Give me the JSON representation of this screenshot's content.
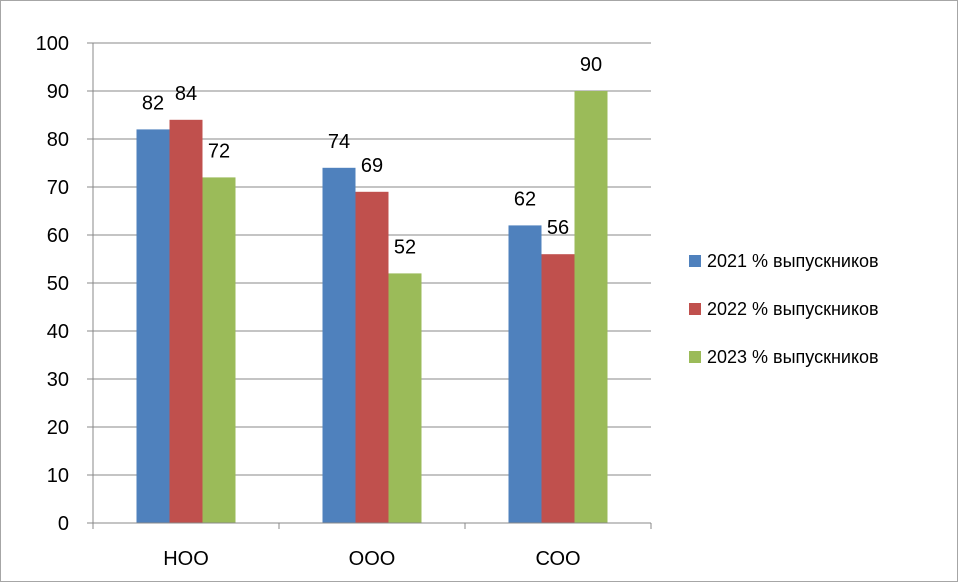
{
  "chart_data": {
    "type": "bar",
    "categories": [
      "НОО",
      "ООО",
      "СОО"
    ],
    "series": [
      {
        "name": "2021 % выпускников",
        "color": "#4f81bd",
        "values": [
          82,
          74,
          62
        ]
      },
      {
        "name": "2022 % выпускников",
        "color": "#c0504d",
        "values": [
          84,
          69,
          56
        ]
      },
      {
        "name": "2023 % выпускников",
        "color": "#9bbb59",
        "values": [
          72,
          52,
          90
        ]
      }
    ],
    "ylim": [
      0,
      100
    ],
    "yticks": [
      0,
      10,
      20,
      30,
      40,
      50,
      60,
      70,
      80,
      90,
      100
    ],
    "grid": true,
    "legend_position": "right",
    "data_labels": true
  }
}
